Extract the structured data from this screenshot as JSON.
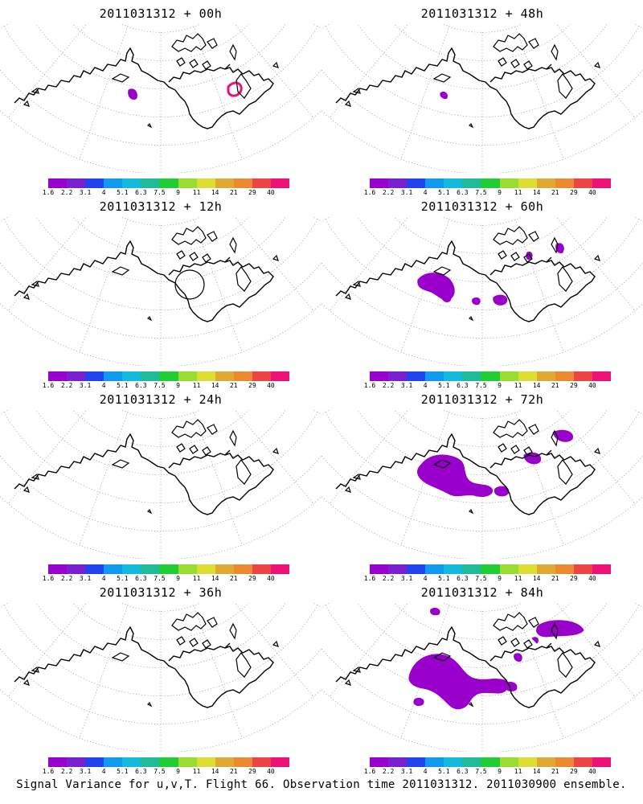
{
  "footer": "Signal Variance for u,v,T. Flight 66. Observation time 2011031312. 2011030900 ensemble.",
  "colorbar": {
    "colors": [
      "#9900cc",
      "#7722cc",
      "#2244ee",
      "#1199ee",
      "#11bbdd",
      "#22bb99",
      "#22cc33",
      "#99dd33",
      "#dddd33",
      "#ddaa33",
      "#ee8833",
      "#ee4444",
      "#ee1177"
    ],
    "labels": [
      "1.6",
      "2.2",
      "3.1",
      "4",
      "5.1",
      "6.3",
      "7.5",
      "9",
      "11",
      "14",
      "21",
      "29",
      "40"
    ]
  },
  "panels": [
    {
      "title": "2011031312 + 00h",
      "blobs": "p00"
    },
    {
      "title": "2011031312 + 48h",
      "blobs": "p48"
    },
    {
      "title": "2011031312 + 12h",
      "blobs": "p12"
    },
    {
      "title": "2011031312 + 60h",
      "blobs": "p60"
    },
    {
      "title": "2011031312 + 24h",
      "blobs": "p24"
    },
    {
      "title": "2011031312 + 72h",
      "blobs": "p72"
    },
    {
      "title": "2011031312 + 36h",
      "blobs": "p36"
    },
    {
      "title": "2011031312 + 84h",
      "blobs": "p84"
    }
  ]
}
